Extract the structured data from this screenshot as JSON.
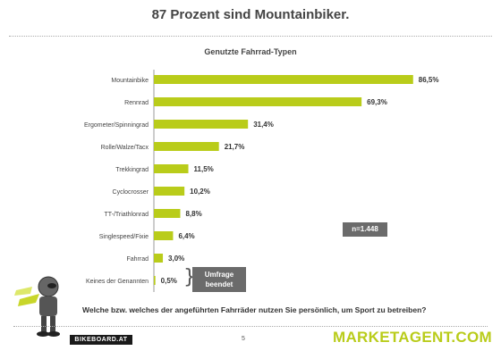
{
  "slide": {
    "title": "87 Prozent sind Mountainbiker.",
    "question": "Welche bzw. welches der angeführten Fahrräder nutzen Sie persönlich, um Sport zu betreiben?",
    "page_number": "5",
    "bikeboard_logo": "BIKEBOARD.AT",
    "brand_logo": "MARKETAGENT.COM",
    "sample_badge": "n=1.448",
    "umfrage_badge": "Umfrage beendet"
  },
  "colors": {
    "bar": "#b9cc1a",
    "accent_dark": "#6b6b6b"
  },
  "chart_data": {
    "type": "bar",
    "orientation": "horizontal",
    "title": "Genutzte Fahrrad-Typen",
    "categories": [
      "Mountainbike",
      "Rennrad",
      "Ergometer/Spinningrad",
      "Rolle/Walze/Tacx",
      "Trekkingrad",
      "Cyclocrosser",
      "TT-/Triathlonrad",
      "Singlespeed/Fixie",
      "Fahrrad",
      "Keines der Genannten"
    ],
    "values": [
      86.5,
      69.3,
      31.4,
      21.7,
      11.5,
      10.2,
      8.8,
      6.4,
      3.0,
      0.5
    ],
    "value_labels": [
      "86,5%",
      "69,3%",
      "31,4%",
      "21,7%",
      "11,5%",
      "10,2%",
      "8,8%",
      "6,4%",
      "3,0%",
      "0,5%"
    ],
    "xlim": [
      0,
      100
    ],
    "grid": false,
    "legend": "none"
  }
}
